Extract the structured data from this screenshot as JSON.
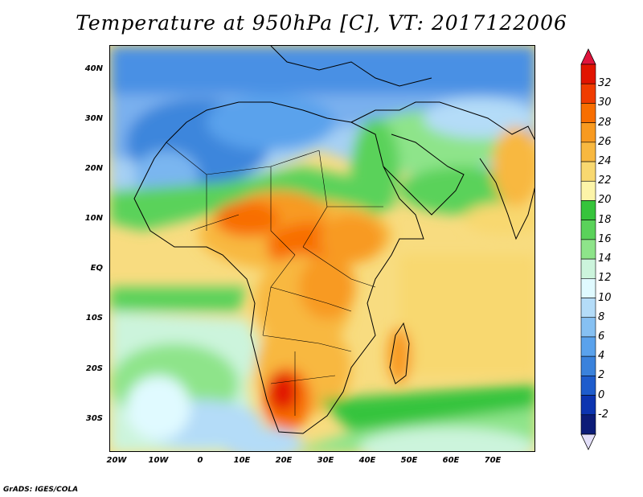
{
  "title": "Temperature at 950hPa [C], VT: 2017122006",
  "credit": "GrADS: IGES/COLA",
  "latitude_labels": [
    "40N",
    "30N",
    "20N",
    "10N",
    "EQ",
    "10S",
    "20S",
    "30S"
  ],
  "longitude_labels": [
    "20W",
    "10W",
    "0",
    "10E",
    "20E",
    "30E",
    "40E",
    "50E",
    "60E",
    "70E"
  ],
  "colorbar": {
    "labels": [
      "32",
      "30",
      "28",
      "26",
      "24",
      "22",
      "20",
      "18",
      "16",
      "14",
      "12",
      "10",
      "8",
      "6",
      "4",
      "2",
      "0",
      "-2"
    ],
    "colors": [
      "#e11400",
      "#f03c00",
      "#f86e00",
      "#f89a20",
      "#f8b840",
      "#f8d870",
      "#fcf4a8",
      "#36c43c",
      "#5ad25a",
      "#8ee48a",
      "#ccf4dc",
      "#e0faff",
      "#b4dcf8",
      "#86c0f2",
      "#5aa2ec",
      "#3a82dc",
      "#1e5ccc",
      "#0c34b0",
      "#0c1c78"
    ],
    "min_arrow_color": "#e4e0fa",
    "max_arrow_color": "#e0143c"
  },
  "map": {
    "region": "Africa and Arabian Peninsula",
    "lon_range": [
      -22,
      80
    ],
    "lat_range": [
      -37,
      45
    ]
  }
}
